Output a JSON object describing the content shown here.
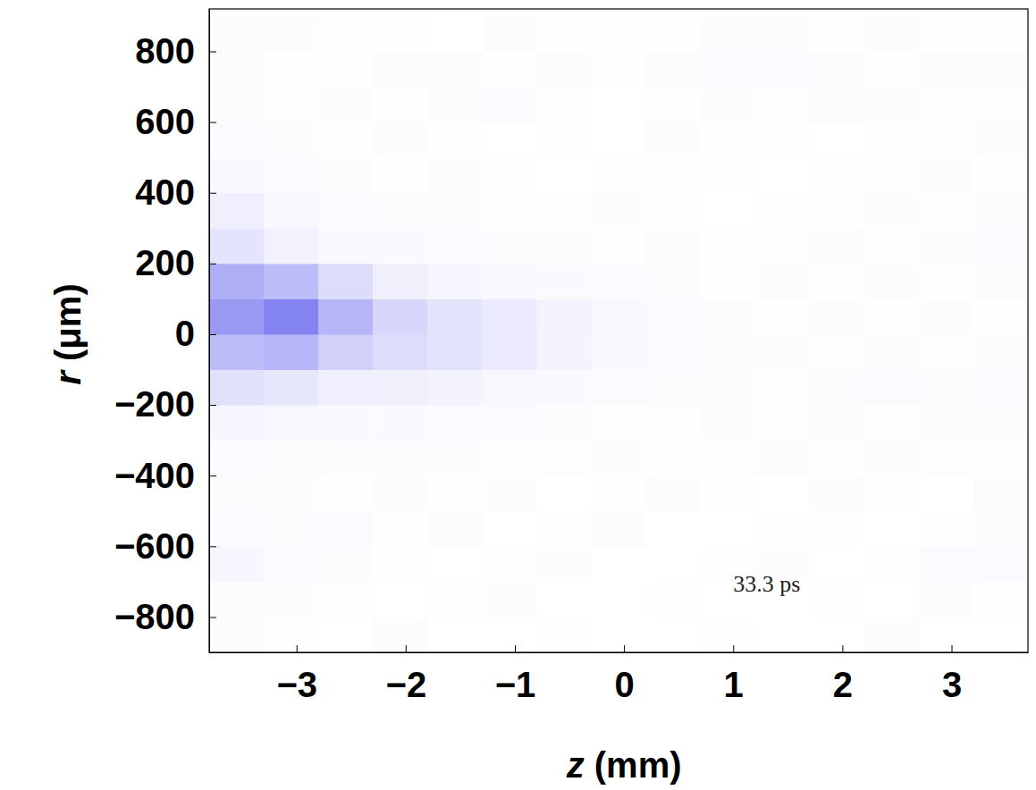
{
  "chart_data": {
    "type": "heatmap",
    "x_label": "z (mm)",
    "y_label": "r (μm)",
    "annotation": "33.3 ps",
    "color": "#7878f0",
    "color_range": [
      0,
      1
    ],
    "xlim": [
      -3.8,
      3.7
    ],
    "ylim": [
      -900,
      920
    ],
    "xticks": [
      {
        "value": -3,
        "label": "−3"
      },
      {
        "value": -2,
        "label": "−2"
      },
      {
        "value": -1,
        "label": "−1"
      },
      0,
      1,
      2,
      3
    ],
    "yticks": [
      {
        "value": -800,
        "label": "−800"
      },
      {
        "value": -600,
        "label": "−600"
      },
      {
        "value": -400,
        "label": "−400"
      },
      {
        "value": -200,
        "label": "−200"
      },
      0,
      200,
      400,
      600,
      800
    ],
    "x_edges": [
      -3.8,
      -3.3,
      -2.8,
      -2.3,
      -1.8,
      -1.3,
      -0.8,
      -0.3,
      0.2,
      0.7,
      1.2,
      1.7,
      2.2,
      2.7,
      3.2,
      3.7
    ],
    "y_edges": [
      -900,
      -800,
      -700,
      -600,
      -500,
      -400,
      -300,
      -200,
      -100,
      0,
      100,
      200,
      300,
      400,
      500,
      600,
      700,
      800,
      900
    ],
    "cells": [
      [
        0.02,
        0.01,
        0,
        0.02,
        0,
        0,
        0.01,
        0,
        0,
        0.01,
        0,
        0,
        0.02,
        0,
        0
      ],
      [
        0.02,
        0.02,
        0.01,
        0,
        0.01,
        0.02,
        0,
        0,
        0.01,
        0,
        0,
        0.01,
        0,
        0.02,
        0.01
      ],
      [
        0.07,
        0.03,
        0.02,
        0.01,
        0,
        0.01,
        0.02,
        0,
        0,
        0.01,
        0.02,
        0,
        0.01,
        0.03,
        0.03
      ],
      [
        0.03,
        0.02,
        0.03,
        0.01,
        0.02,
        0,
        0.01,
        0.02,
        0,
        0,
        0.01,
        0.01,
        0,
        0.01,
        0.02
      ],
      [
        0.02,
        0.02,
        0.01,
        0.02,
        0.01,
        0.02,
        0,
        0.01,
        0.02,
        0.01,
        0,
        0.02,
        0.01,
        0,
        0.02
      ],
      [
        0.03,
        0.02,
        0.02,
        0.02,
        0.02,
        0.01,
        0.01,
        0.02,
        0.01,
        0.01,
        0.02,
        0.01,
        0.02,
        0.01,
        0.01
      ],
      [
        0.07,
        0.06,
        0.04,
        0.04,
        0.03,
        0.03,
        0.02,
        0.01,
        0.01,
        0.02,
        0.01,
        0.02,
        0.01,
        0.02,
        0.02
      ],
      [
        0.22,
        0.18,
        0.12,
        0.11,
        0.09,
        0.06,
        0.04,
        0.03,
        0.02,
        0.02,
        0.01,
        0.02,
        0.03,
        0.02,
        0.03
      ],
      [
        0.5,
        0.55,
        0.35,
        0.26,
        0.2,
        0.15,
        0.08,
        0.05,
        0.03,
        0.02,
        0.02,
        0.01,
        0.02,
        0.01,
        0.02
      ],
      [
        0.75,
        0.92,
        0.55,
        0.3,
        0.2,
        0.15,
        0.09,
        0.05,
        0.03,
        0.02,
        0.01,
        0.02,
        0.01,
        0.02,
        0.01
      ],
      [
        0.6,
        0.5,
        0.25,
        0.11,
        0.07,
        0.05,
        0.04,
        0.03,
        0.02,
        0.01,
        0.02,
        0.01,
        0.02,
        0.01,
        0.02
      ],
      [
        0.2,
        0.1,
        0.05,
        0.04,
        0.03,
        0.02,
        0.02,
        0.01,
        0.02,
        0.01,
        0.01,
        0.02,
        0.01,
        0.02,
        0.03
      ],
      [
        0.12,
        0.05,
        0.03,
        0.02,
        0.02,
        0.01,
        0.01,
        0.02,
        0.01,
        0,
        0.01,
        0.01,
        0.02,
        0.01,
        0.02
      ],
      [
        0.05,
        0.03,
        0.02,
        0.01,
        0.02,
        0.01,
        0,
        0.01,
        0.01,
        0.01,
        0,
        0.01,
        0.01,
        0.02,
        0.01
      ],
      [
        0.03,
        0.02,
        0.01,
        0.02,
        0.01,
        0,
        0.01,
        0,
        0.02,
        0.01,
        0.01,
        0,
        0.01,
        0.01,
        0.02
      ],
      [
        0.02,
        0.01,
        0.02,
        0.01,
        0.02,
        0.03,
        0.01,
        0,
        0.01,
        0.02,
        0.01,
        0.02,
        0.02,
        0.01,
        0.01
      ],
      [
        0.02,
        0.01,
        0.01,
        0.02,
        0.02,
        0.01,
        0.02,
        0.01,
        0.02,
        0.03,
        0.03,
        0.02,
        0.01,
        0.02,
        0.02
      ],
      [
        0.02,
        0.02,
        0.01,
        0.01,
        0,
        0.02,
        0.01,
        0.01,
        0.01,
        0.02,
        0.02,
        0.01,
        0.02,
        0.01,
        0.01
      ]
    ]
  }
}
